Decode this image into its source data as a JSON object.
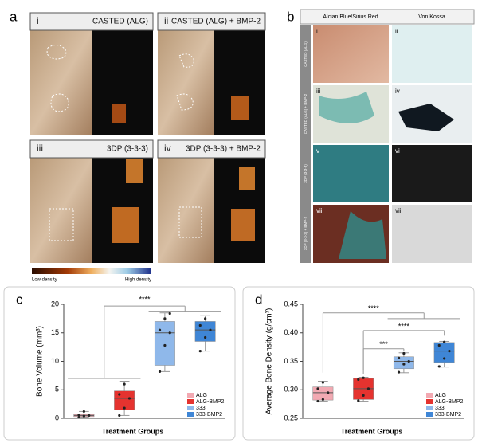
{
  "panel_a": {
    "letter": "a",
    "tiles": [
      {
        "numeral": "i",
        "label": "CASTED (ALG)"
      },
      {
        "numeral": "ii",
        "label": "CASTED (ALG) + BMP-2"
      },
      {
        "numeral": "iii",
        "label": "3DP (3-3-3)"
      },
      {
        "numeral": "iv",
        "label": "3DP (3-3-3) + BMP-2"
      }
    ],
    "colorbar": {
      "low": "Low density",
      "high": "High density"
    }
  },
  "panel_b": {
    "letter": "b",
    "columns": [
      "Alcian Blue/Sirius Red",
      "Von Kossa"
    ],
    "rows": [
      "CASTED (ALG)",
      "CASTED (ALG) + BMP-2",
      "3DP (3-3-3)",
      "3DP (3-3-3) + BMP-2"
    ],
    "numerals": [
      "i",
      "ii",
      "iii",
      "iv",
      "v",
      "vi",
      "vii",
      "viii"
    ]
  },
  "chart_data": [
    {
      "type": "box",
      "letter": "c",
      "y_label": "Bone Volume (mm³)",
      "x_label": "Treatment Groups",
      "ylim": [
        0,
        20
      ],
      "yticks": [
        0,
        5,
        10,
        15,
        20
      ],
      "annotations": [
        "****"
      ],
      "series": [
        {
          "name": "ALG",
          "color": "#f2a9b2",
          "min": 0.2,
          "q1": 0.3,
          "median": 0.5,
          "q3": 0.7,
          "max": 1.2,
          "points": [
            0.2,
            0.4,
            0.5,
            0.6,
            1.2
          ]
        },
        {
          "name": "ALG-BMP2",
          "color": "#e5332f",
          "min": 0.5,
          "q1": 1.5,
          "median": 3.5,
          "q3": 4.8,
          "max": 6.5,
          "points": [
            0.5,
            1.8,
            3.5,
            4.2,
            6.0
          ]
        },
        {
          "name": "333",
          "color": "#8fb8ea",
          "min": 8.2,
          "q1": 9.3,
          "median": 15.0,
          "q3": 17.0,
          "max": 18.5,
          "points": [
            8.2,
            12.8,
            15.0,
            15.5,
            17.5,
            18.4
          ]
        },
        {
          "name": "333-BMP2",
          "color": "#3f86d6",
          "min": 11.8,
          "q1": 13.5,
          "median": 15.5,
          "q3": 17.0,
          "max": 18.0,
          "points": [
            11.8,
            14.2,
            15.5,
            16.3,
            17.5
          ]
        }
      ]
    },
    {
      "type": "box",
      "letter": "d",
      "y_label": "Average Bone Density (g/cm³)",
      "x_label": "Treatment Groups",
      "ylim": [
        0.25,
        0.45
      ],
      "yticks": [
        0.25,
        {
          "value": 0.3,
          "label": "0.30"
        },
        0.35,
        {
          "value": 0.4,
          "label": "0.40"
        },
        0.45
      ],
      "annotations": [
        "****",
        "****",
        "***"
      ],
      "series": [
        {
          "name": "ALG",
          "color": "#f2a9b2",
          "min": 0.28,
          "q1": 0.282,
          "median": 0.295,
          "q3": 0.305,
          "max": 0.315,
          "points": [
            0.28,
            0.283,
            0.295,
            0.302,
            0.313
          ]
        },
        {
          "name": "ALG-BMP2",
          "color": "#e5332f",
          "min": 0.28,
          "q1": 0.283,
          "median": 0.302,
          "q3": 0.32,
          "max": 0.322,
          "points": [
            0.281,
            0.29,
            0.302,
            0.318,
            0.321
          ]
        },
        {
          "name": "333",
          "color": "#8fb8ea",
          "min": 0.33,
          "q1": 0.337,
          "median": 0.35,
          "q3": 0.358,
          "max": 0.365,
          "points": [
            0.331,
            0.345,
            0.35,
            0.356,
            0.364
          ]
        },
        {
          "name": "333-BMP2",
          "color": "#3f86d6",
          "min": 0.34,
          "q1": 0.348,
          "median": 0.368,
          "q3": 0.383,
          "max": 0.385,
          "points": [
            0.341,
            0.355,
            0.368,
            0.378,
            0.384
          ]
        }
      ]
    }
  ]
}
